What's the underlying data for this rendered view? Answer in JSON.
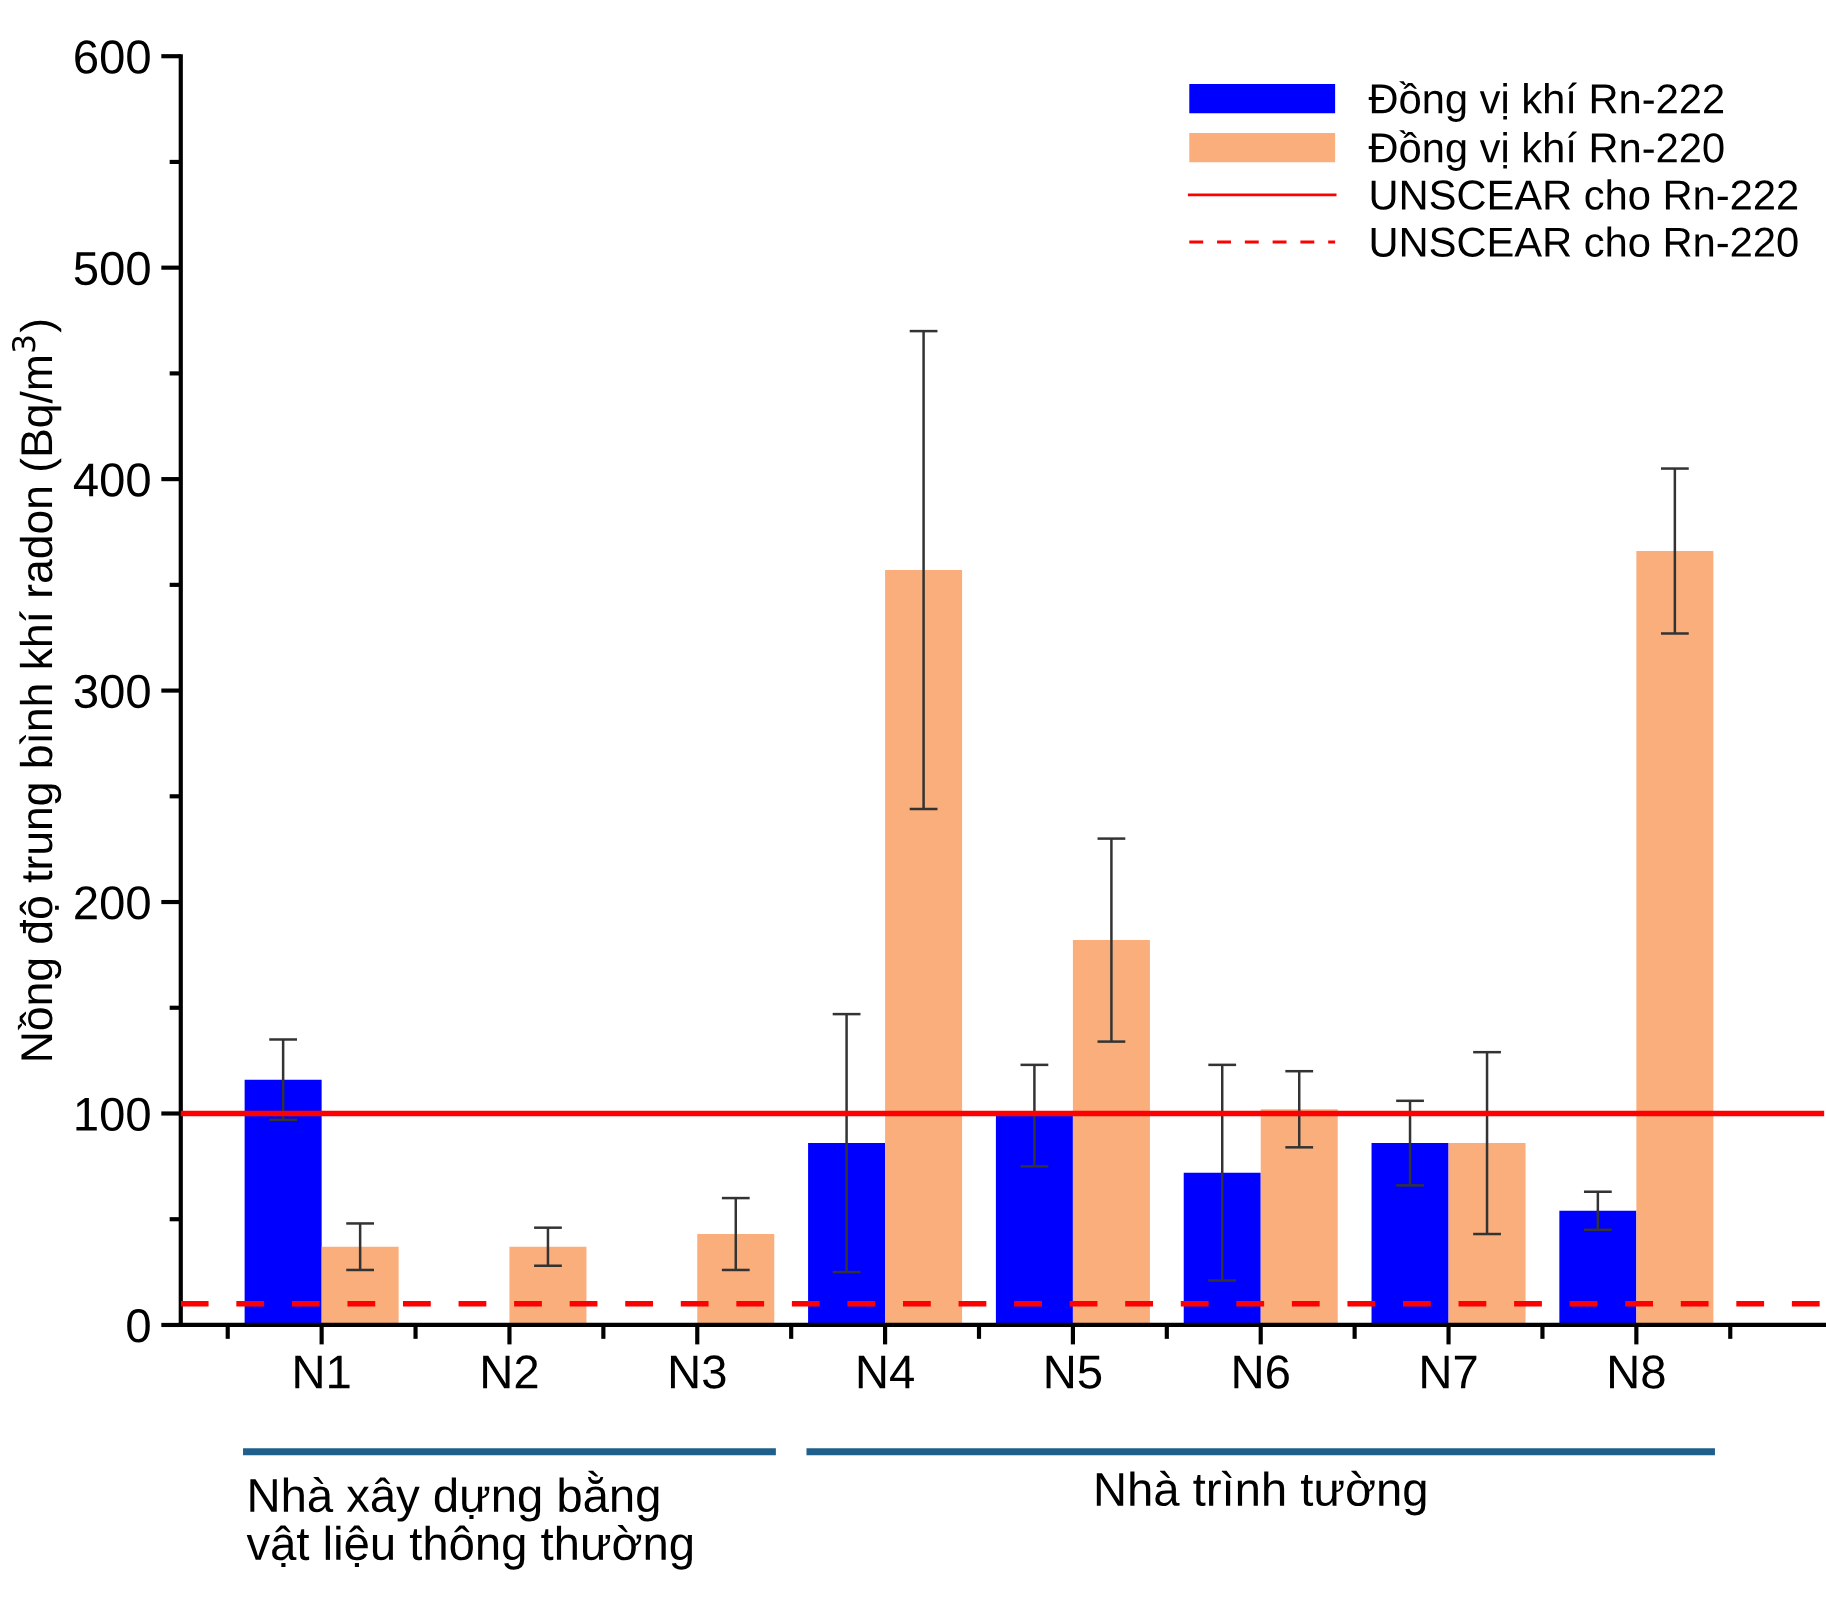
{
  "chart_data": {
    "type": "bar",
    "ylabel": "Nồng độ trung bình khí radon (Bq/m$^{3}$)",
    "categories": [
      "N1",
      "N2",
      "N3",
      "N4",
      "N5",
      "N6",
      "N7",
      "N8"
    ],
    "series": [
      {
        "name": "Đồng vị khí Rn-222",
        "color": "#0000ff",
        "values": [
          116,
          null,
          null,
          86,
          99,
          72,
          86,
          54
        ],
        "errors": [
          19,
          null,
          null,
          61,
          24,
          51,
          20,
          9
        ]
      },
      {
        "name": "Đồng vị khí Rn-220",
        "color": "#f9ae7c",
        "values": [
          37,
          37,
          43,
          357,
          182,
          102,
          86,
          366
        ],
        "errors": [
          11,
          9,
          17,
          113,
          48,
          18,
          43,
          39
        ]
      }
    ],
    "ref_lines": [
      {
        "axis": "y",
        "value": 100,
        "label": "UNSCEAR cho Rn-222",
        "color": "#ff0000",
        "line_style": "solid"
      },
      {
        "axis": "y",
        "value": 10,
        "label": "UNSCEAR cho Rn-220",
        "color": "#ff0000",
        "line_style": "dashed"
      }
    ],
    "annotations": [
      "Nhà xây dựng bằng\nvật liệu thông thường",
      "Nhà trình tường"
    ],
    "ylim": [
      0,
      600
    ],
    "yticks": [
      0,
      100,
      200,
      300,
      400,
      500,
      600
    ],
    "legend": "top right",
    "grid": false
  }
}
